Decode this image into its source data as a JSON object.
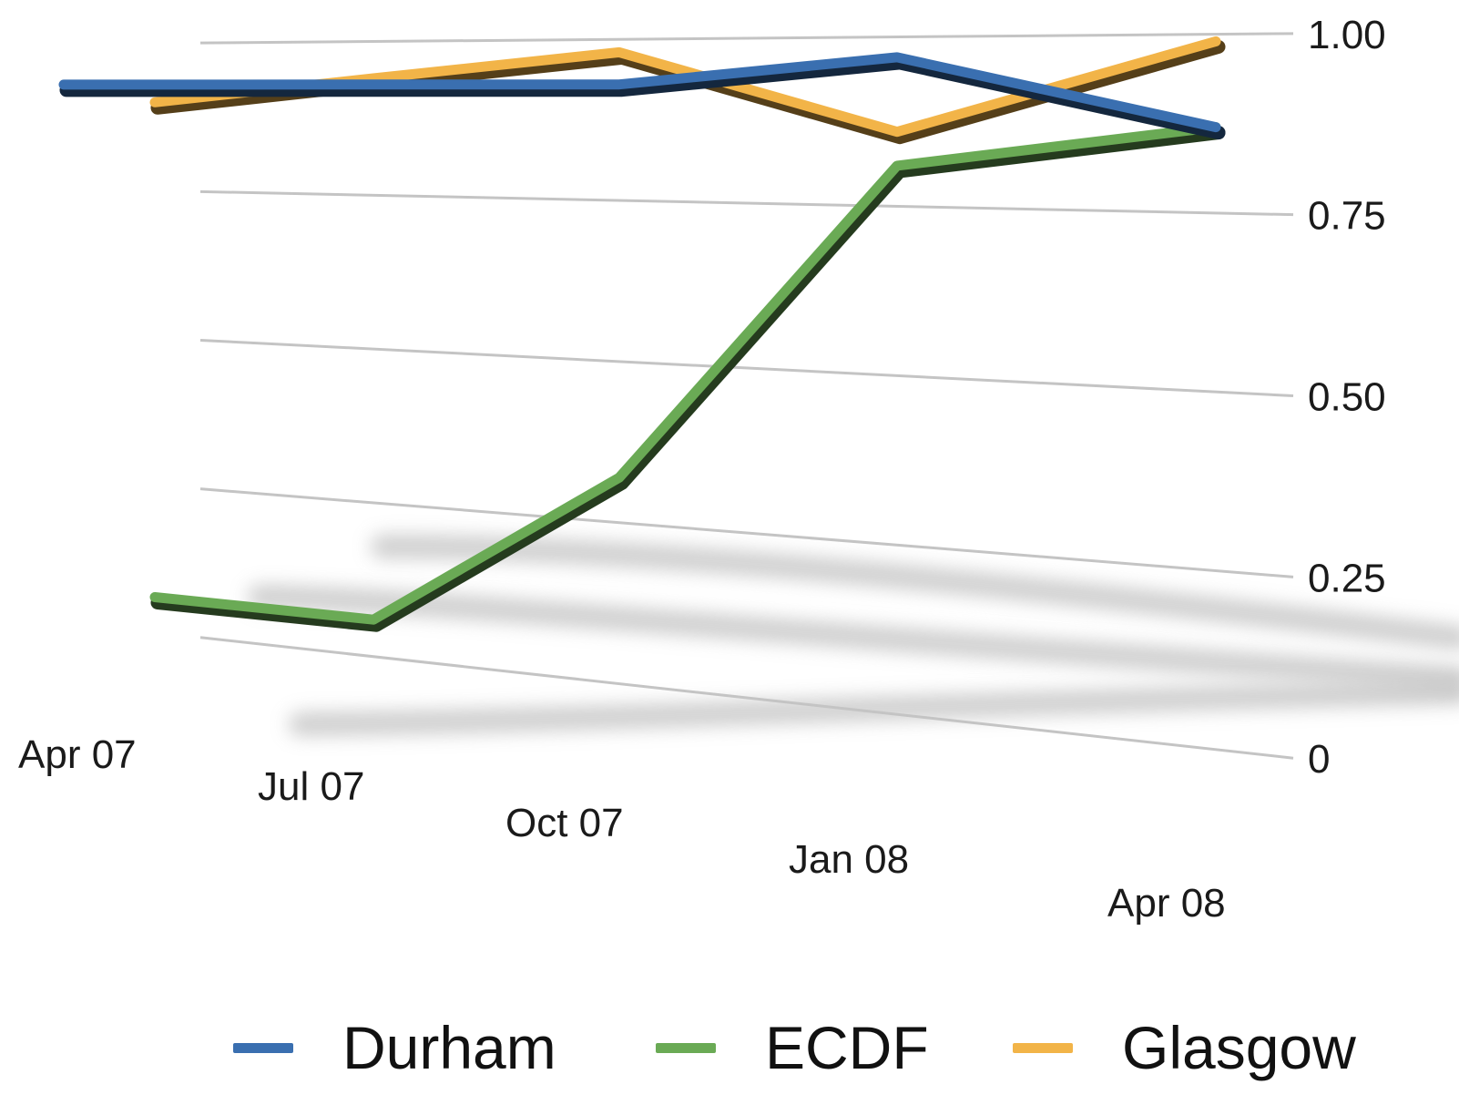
{
  "chart_data": {
    "type": "line",
    "style": "3d-perspective",
    "categories": [
      "Apr 07",
      "Jul 07",
      "Oct 07",
      "Jan 08",
      "Apr 08"
    ],
    "series": [
      {
        "name": "Durham",
        "color": "#3a6fb0",
        "values": [
          0.93,
          0.93,
          0.93,
          0.97,
          0.87
        ]
      },
      {
        "name": "ECDF",
        "color": "#6aaa55",
        "values": [
          0.06,
          0.06,
          0.32,
          0.81,
          0.87
        ]
      },
      {
        "name": "Glasgow",
        "color": "#f2b448",
        "values": [
          0.9,
          0.94,
          0.98,
          0.86,
          0.99
        ]
      }
    ],
    "y_tick_labels": [
      "0",
      "0.25",
      "0.50",
      "0.75",
      "1.00"
    ],
    "y_ticks": [
      0,
      0.25,
      0.5,
      0.75,
      1.0
    ],
    "ylim": [
      0,
      1.0
    ],
    "grid": true,
    "legend_position": "bottom",
    "title": "",
    "xlabel": "",
    "ylabel": ""
  }
}
